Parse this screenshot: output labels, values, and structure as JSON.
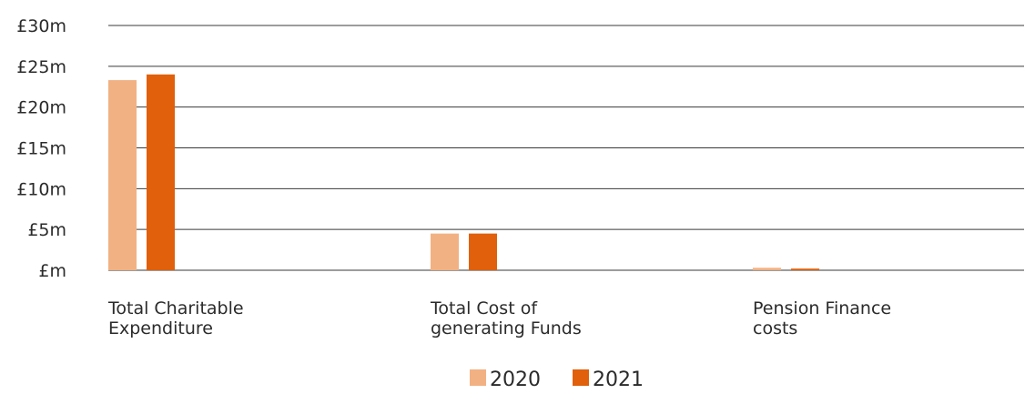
{
  "chart_data": {
    "type": "bar",
    "categories": [
      [
        "Total Charitable",
        "Expenditure"
      ],
      [
        "Total Cost of",
        "generating Funds"
      ],
      [
        "Pension Finance",
        "costs"
      ]
    ],
    "series": [
      {
        "name": "2020",
        "color": "#f2b183",
        "values": [
          23.3,
          4.5,
          0.3
        ]
      },
      {
        "name": "2021",
        "color": "#e0600b",
        "values": [
          24.0,
          4.5,
          0.2
        ]
      }
    ],
    "y_ticks": [
      {
        "value": 0,
        "label": "£m"
      },
      {
        "value": 5,
        "label": "£5m"
      },
      {
        "value": 10,
        "label": "£10m"
      },
      {
        "value": 15,
        "label": "£15m"
      },
      {
        "value": 20,
        "label": "£20m"
      },
      {
        "value": 25,
        "label": "£25m"
      },
      {
        "value": 30,
        "label": "£30m"
      }
    ],
    "ylim": [
      0,
      30
    ],
    "grid": true,
    "legend_position": "bottom-center"
  }
}
